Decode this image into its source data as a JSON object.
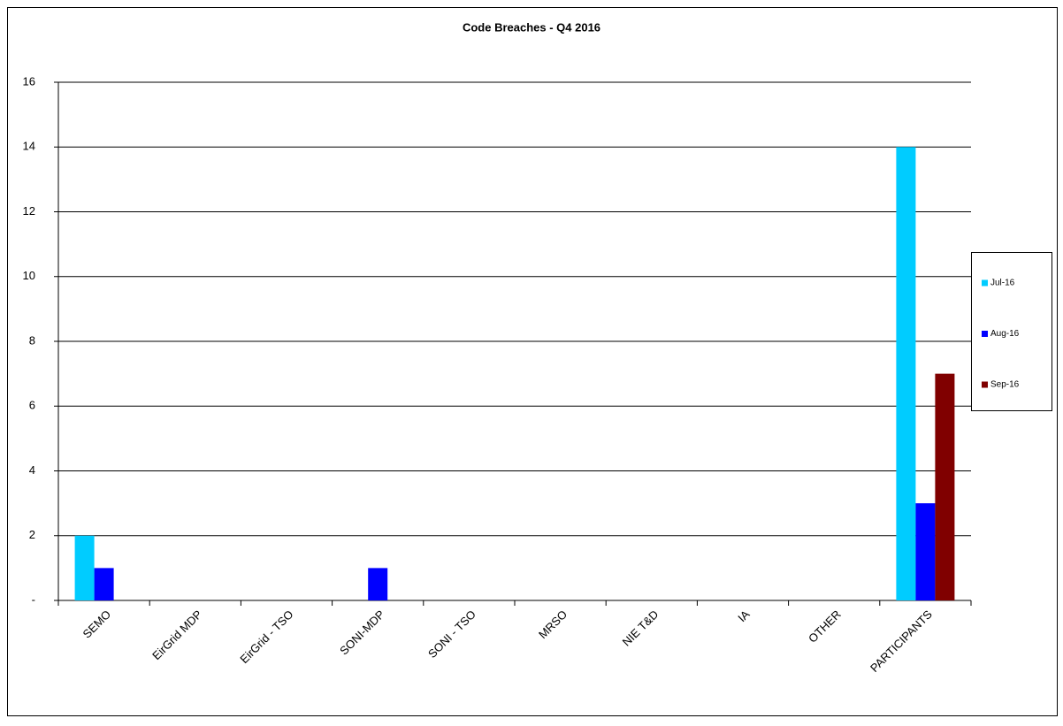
{
  "chart_data": {
    "type": "bar",
    "title": "Code Breaches - Q4 2016",
    "categories": [
      "SEMO",
      "EirGrid MDP",
      "EirGrid - TSO",
      "SONI-MDP",
      "SONI - TSO",
      "MRSO",
      "NIE T&D",
      "IA",
      "OTHER",
      "PARTICIPANTS"
    ],
    "series": [
      {
        "name": "Jul-16",
        "color": "#00ccff",
        "values": [
          2,
          0,
          0,
          0,
          0,
          0,
          0,
          0,
          0,
          14
        ]
      },
      {
        "name": "Aug-16",
        "color": "#0000ff",
        "values": [
          1,
          0,
          0,
          1,
          0,
          0,
          0,
          0,
          0,
          3
        ]
      },
      {
        "name": "Sep-16",
        "color": "#800000",
        "values": [
          0,
          0,
          0,
          0,
          0,
          0,
          0,
          0,
          0,
          7
        ]
      }
    ],
    "ylim": [
      0,
      16
    ],
    "yticks": [
      {
        "value": 0,
        "label": "-"
      },
      2,
      4,
      6,
      8,
      10,
      12,
      14,
      16
    ],
    "grid": true,
    "legend": "right"
  }
}
